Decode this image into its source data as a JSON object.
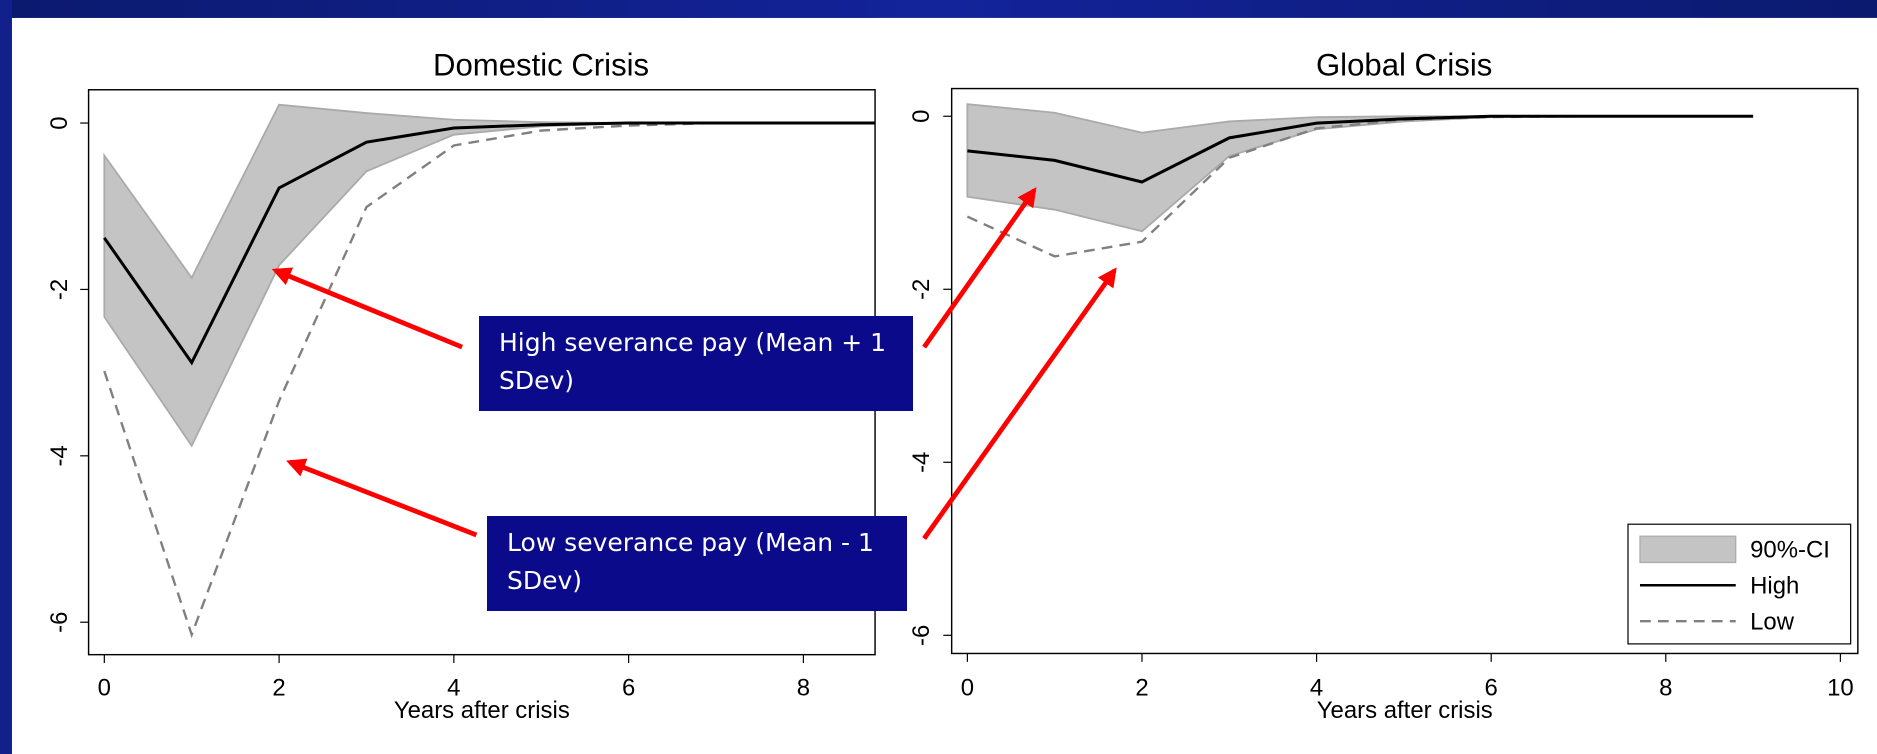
{
  "chart_data": [
    {
      "type": "line",
      "title": "Domestic Crisis",
      "xlabel": "Years after crisis",
      "x": [
        0,
        1,
        2,
        3,
        4,
        5,
        6,
        7,
        8,
        9
      ],
      "series": [
        {
          "color": "#c4c4c4",
          "upper": [
            -0.39,
            -1.86,
            0.22,
            0.12,
            0.04,
            0.01,
            0,
            0,
            0,
            0
          ],
          "lower": [
            -2.33,
            -3.88,
            -1.71,
            -0.58,
            -0.14,
            -0.04,
            0,
            0,
            0,
            0
          ]
        },
        {
          "color": "#808080",
          "dash": true,
          "values": [
            -2.98,
            -6.15,
            -3.34,
            -1.01,
            -0.27,
            -0.09,
            -0.03,
            0,
            0,
            0
          ]
        },
        {
          "color": "#000000",
          "values": [
            -1.38,
            -2.88,
            -0.78,
            -0.23,
            -0.06,
            -0.02,
            0,
            0,
            0,
            0
          ]
        }
      ],
      "xlim": [
        -0.18,
        8.82
      ],
      "xticks": [
        0,
        2,
        4,
        6,
        8
      ],
      "ylim": [
        -6.39,
        0.4
      ],
      "yticks": [
        0,
        -2,
        -4,
        -6
      ]
    },
    {
      "type": "line",
      "title": "Global Crisis",
      "xlabel": "Years after crisis",
      "x": [
        0,
        1,
        2,
        3,
        4,
        5,
        6,
        7,
        8,
        9
      ],
      "series": [
        {
          "name": "90%-CI",
          "color": "#c4c4c4",
          "upper": [
            0.14,
            0.04,
            -0.19,
            -0.06,
            -0.01,
            0,
            0,
            0,
            0,
            0
          ],
          "lower": [
            -0.93,
            -1.08,
            -1.33,
            -0.46,
            -0.15,
            -0.06,
            -0.01,
            0,
            0,
            0
          ]
        },
        {
          "name": "Low",
          "color": "#808080",
          "dash": true,
          "values": [
            -1.16,
            -1.62,
            -1.45,
            -0.48,
            -0.14,
            -0.04,
            -0.01,
            0,
            0,
            0
          ]
        },
        {
          "name": "High",
          "color": "#000000",
          "values": [
            -0.4,
            -0.51,
            -0.76,
            -0.25,
            -0.08,
            -0.03,
            0,
            0,
            0,
            0
          ]
        }
      ],
      "legend_order": [
        0,
        2,
        1
      ],
      "legend": "lower right",
      "xlim": [
        -0.18,
        10.2
      ],
      "xticks": [
        0,
        2,
        4,
        6,
        8,
        10
      ],
      "ylim": [
        -6.21,
        0.32
      ],
      "yticks": [
        0,
        -2,
        -4,
        -6
      ]
    }
  ],
  "annotations": [
    "High severance pay (Mean + 1 SDev)",
    "Low severance pay (Mean - 1 SDev)"
  ]
}
